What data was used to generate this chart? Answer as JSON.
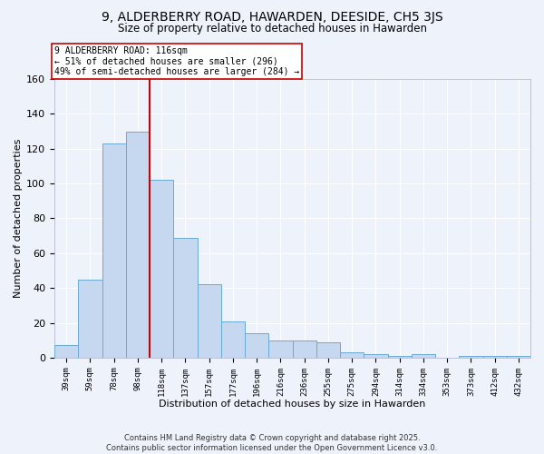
{
  "title": "9, ALDERBERRY ROAD, HAWARDEN, DEESIDE, CH5 3JS",
  "subtitle": "Size of property relative to detached houses in Hawarden",
  "xlabel": "Distribution of detached houses by size in Hawarden",
  "ylabel": "Number of detached properties",
  "bar_color": "#c5d8f0",
  "bar_edge_color": "#6aaad4",
  "categories": [
    "39sqm",
    "59sqm",
    "78sqm",
    "98sqm",
    "118sqm",
    "137sqm",
    "157sqm",
    "177sqm",
    "196sqm",
    "216sqm",
    "236sqm",
    "255sqm",
    "275sqm",
    "294sqm",
    "314sqm",
    "334sqm",
    "353sqm",
    "373sqm",
    "412sqm",
    "432sqm"
  ],
  "values": [
    7,
    45,
    123,
    130,
    102,
    69,
    42,
    21,
    14,
    10,
    10,
    9,
    3,
    2,
    1,
    2,
    0,
    1,
    1,
    1
  ],
  "vline_color": "#cc0000",
  "vline_x_index": 3.5,
  "annotation_title": "9 ALDERBERRY ROAD: 116sqm",
  "annotation_line1": "← 51% of detached houses are smaller (296)",
  "annotation_line2": "49% of semi-detached houses are larger (284) →",
  "annotation_box_color": "#ffffff",
  "annotation_box_edge": "#cc0000",
  "ylim": [
    0,
    160
  ],
  "yticks": [
    0,
    20,
    40,
    60,
    80,
    100,
    120,
    140,
    160
  ],
  "background_color": "#eef2fa",
  "grid_color": "#ffffff",
  "footer1": "Contains HM Land Registry data © Crown copyright and database right 2025.",
  "footer2": "Contains public sector information licensed under the Open Government Licence v3.0."
}
